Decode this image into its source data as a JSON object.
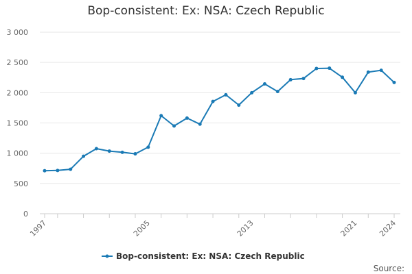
{
  "chart_data": {
    "type": "line",
    "title": "Bop-consistent: Ex: NSA: Czech Republic",
    "xlabel": "",
    "ylabel": "",
    "ylim": [
      0,
      3000
    ],
    "y_ticks": [
      0,
      500,
      1000,
      1500,
      2000,
      2500,
      3000
    ],
    "y_tick_labels": [
      "0",
      "500",
      "1 000",
      "1 500",
      "2 000",
      "2 500",
      "3 000"
    ],
    "xlim": [
      1997,
      2024
    ],
    "x_ticks": [
      1997,
      2005,
      2013,
      2021,
      2024
    ],
    "x_tick_labels": [
      "1997",
      "2005",
      "2013",
      "2021",
      "2024"
    ],
    "grid": true,
    "legend_position": "bottom-center",
    "x": [
      1997,
      1998,
      1999,
      2000,
      2001,
      2002,
      2003,
      2004,
      2005,
      2006,
      2007,
      2008,
      2009,
      2010,
      2011,
      2012,
      2013,
      2014,
      2015,
      2016,
      2017,
      2018,
      2019,
      2020,
      2021,
      2022,
      2023,
      2024
    ],
    "series": [
      {
        "name": "Bop-consistent: Ex: NSA: Czech Republic",
        "color": "#1a7ab5",
        "values": [
          710,
          715,
          735,
          950,
          1075,
          1035,
          1015,
          990,
          1100,
          1620,
          1450,
          1580,
          1480,
          1855,
          1965,
          1795,
          2000,
          2145,
          2020,
          2215,
          2235,
          2400,
          2405,
          2255,
          2000,
          2340,
          2370,
          2170
        ]
      }
    ]
  },
  "credits": "Source:"
}
